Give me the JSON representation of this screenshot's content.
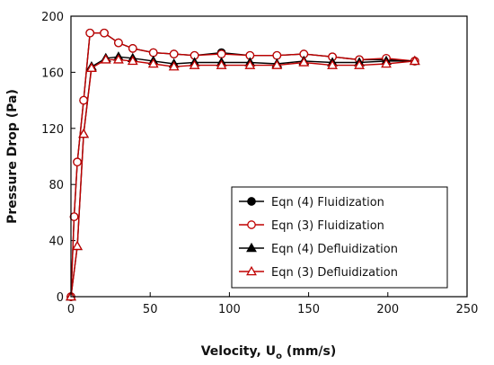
{
  "chart_data": {
    "type": "line",
    "xlabel_main": "Velocity, U",
    "xlabel_sub": "o",
    "xlabel_tail": " (mm/s)",
    "ylabel": "Pressure Drop (Pa)",
    "xlim": [
      0,
      250
    ],
    "ylim": [
      0,
      200
    ],
    "xticks": [
      0,
      50,
      100,
      150,
      200,
      250
    ],
    "yticks": [
      0,
      40,
      80,
      120,
      160,
      200
    ],
    "grid": false,
    "legend_position": "bottom-right",
    "series": [
      {
        "name": "Eqn (4) Fluidization",
        "color": "#000000",
        "marker": "filled-circle",
        "x": [
          0,
          2,
          4,
          8,
          12,
          21,
          30,
          39,
          52,
          65,
          78,
          95,
          113,
          130,
          147,
          165,
          182,
          199,
          217
        ],
        "y": [
          0,
          57,
          96,
          140,
          188,
          188,
          181,
          177,
          174,
          173,
          172,
          174,
          172,
          172,
          173,
          171,
          169,
          169,
          168
        ]
      },
      {
        "name": "Eqn (3) Fluidization",
        "color": "#c00000",
        "marker": "open-circle",
        "x": [
          0,
          2,
          4,
          8,
          12,
          21,
          30,
          39,
          52,
          65,
          78,
          95,
          113,
          130,
          147,
          165,
          182,
          199,
          217
        ],
        "y": [
          0,
          57,
          96,
          140,
          188,
          188,
          181,
          177,
          174,
          173,
          172,
          173,
          172,
          172,
          173,
          171,
          169,
          170,
          168
        ]
      },
      {
        "name": "Eqn (4) Defluidization",
        "color": "#000000",
        "marker": "filled-triangle",
        "x": [
          0,
          4,
          8,
          13,
          22,
          30,
          39,
          52,
          65,
          78,
          95,
          113,
          130,
          147,
          165,
          182,
          199,
          217
        ],
        "y": [
          0,
          36,
          116,
          164,
          170,
          171,
          170,
          168,
          166,
          167,
          167,
          167,
          166,
          168,
          167,
          167,
          168,
          168
        ]
      },
      {
        "name": "Eqn (3) Defluidization",
        "color": "#c00000",
        "marker": "open-triangle",
        "x": [
          0,
          4,
          8,
          13,
          22,
          30,
          39,
          52,
          65,
          78,
          95,
          113,
          130,
          147,
          165,
          182,
          199,
          217
        ],
        "y": [
          0,
          36,
          116,
          163,
          169,
          169,
          168,
          166,
          164,
          165,
          165,
          165,
          165,
          167,
          165,
          165,
          166,
          168
        ]
      }
    ]
  }
}
